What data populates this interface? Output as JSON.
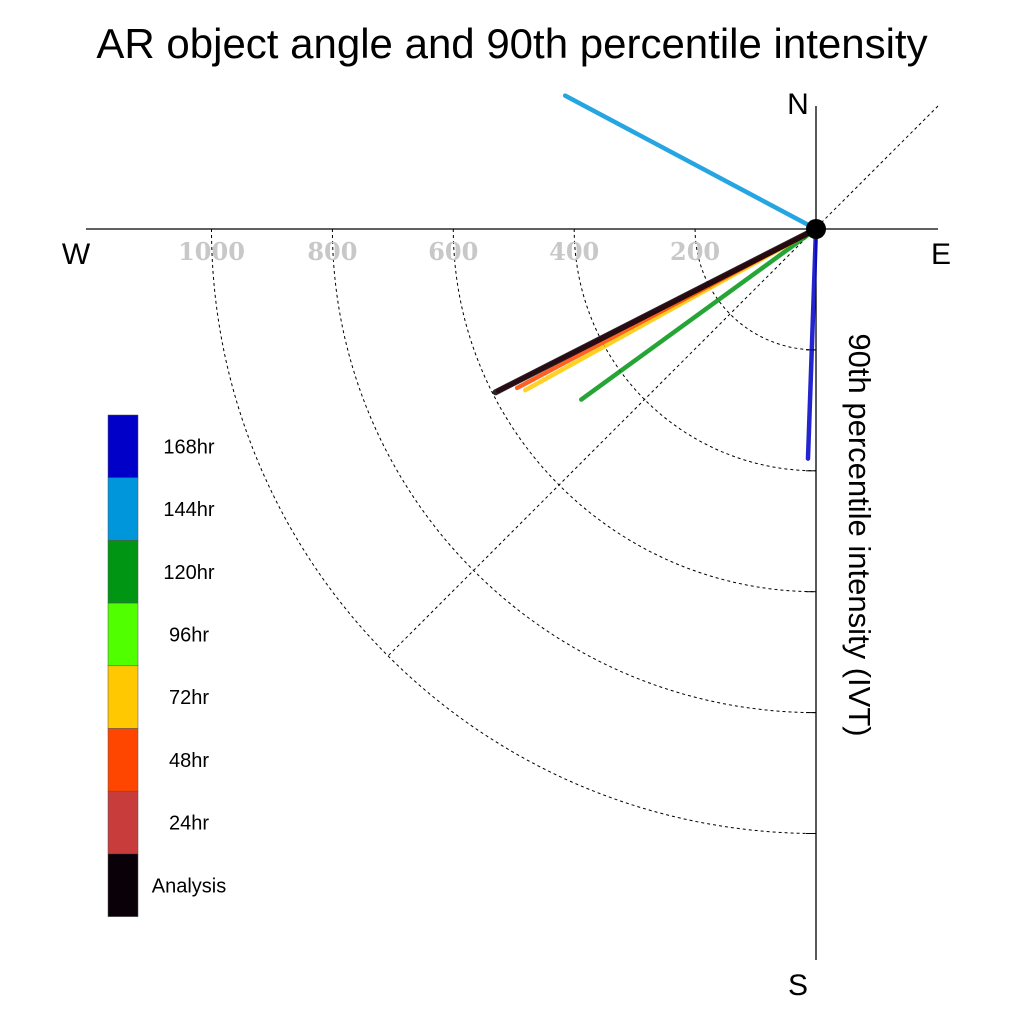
{
  "chart_data": {
    "type": "polar-vector",
    "title": "AR object angle and 90th percentile intensity",
    "ylabel": "90th percentile intensity (IVT)",
    "compass": {
      "N": "N",
      "E": "E",
      "S": "S",
      "W": "W"
    },
    "radial_ticks": [
      "1000",
      "800",
      "600",
      "400",
      "200"
    ],
    "radial_tick_values": [
      1000,
      800,
      600,
      400,
      200
    ],
    "ring_values": [
      200,
      400,
      600,
      800,
      1000
    ],
    "grid": true,
    "legend_placement": "left",
    "series": [
      {
        "name": "168hr",
        "color": "#0000c8",
        "angle_deg": 182,
        "intensity": 380
      },
      {
        "name": "144hr",
        "color": "#0096dc",
        "angle_deg": 298,
        "intensity": 470
      },
      {
        "name": "120hr",
        "color": "#009614",
        "angle_deg": 234,
        "intensity": 480
      },
      {
        "name": "96hr",
        "color": "#50ff00",
        "angle_deg": null,
        "intensity": null
      },
      {
        "name": "72hr",
        "color": "#ffc800",
        "angle_deg": 241,
        "intensity": 550
      },
      {
        "name": "48hr",
        "color": "#ff4600",
        "angle_deg": 242,
        "intensity": 560
      },
      {
        "name": "24hr",
        "color": "#c83c3c",
        "angle_deg": 243,
        "intensity": 590
      },
      {
        "name": "Analysis",
        "color": "#0a0008",
        "angle_deg": 243,
        "intensity": 595
      }
    ]
  }
}
